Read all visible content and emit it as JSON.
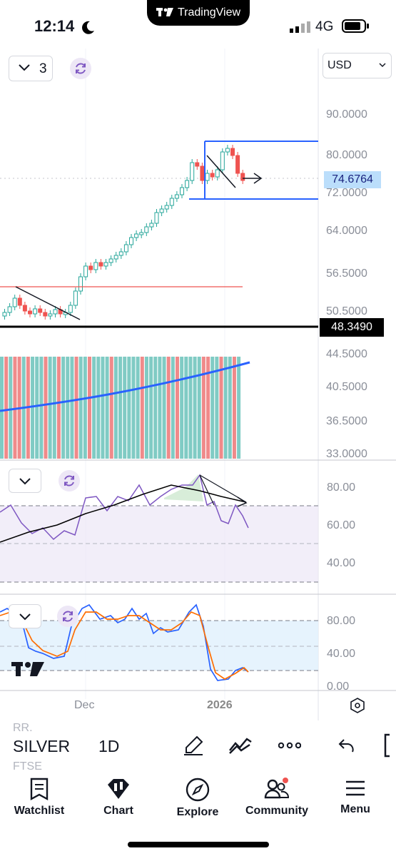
{
  "status": {
    "time": "12:14",
    "network": "4G",
    "app_badge": "TradingView"
  },
  "chart": {
    "interval_count": "3",
    "currency": "USD",
    "last_price": "74.6764",
    "support_price": "48.3490",
    "x_labels": [
      "Dec",
      "2026"
    ],
    "price_axis": [
      "90.0000",
      "80.0000",
      "72.0000",
      "64.0000",
      "56.5000",
      "50.5000",
      "44.5000",
      "40.5000",
      "36.5000",
      "33.0000"
    ],
    "rsi_axis": [
      "80.00",
      "60.00",
      "40.00"
    ],
    "stoch_axis": [
      "80.00",
      "40.00",
      "0.00"
    ],
    "colors": {
      "up": "#26a69a",
      "down": "#ef5350",
      "blue_line": "#2962ff",
      "rsi": "#7e57c2",
      "stoch_k": "#2962ff",
      "stoch_d": "#ff6d00",
      "price_label_bg": "#bbdefb"
    }
  },
  "toolbar": {
    "symbol": "SILVER",
    "interval": "1D",
    "ghost_top": "RR.",
    "ghost_bottom": "FTSE"
  },
  "nav": {
    "items": [
      {
        "label": "Watchlist",
        "icon": "watchlist-icon"
      },
      {
        "label": "Chart",
        "icon": "chart-icon"
      },
      {
        "label": "Explore",
        "icon": "explore-icon"
      },
      {
        "label": "Community",
        "icon": "community-icon"
      },
      {
        "label": "Menu",
        "icon": "menu-icon"
      }
    ]
  }
}
